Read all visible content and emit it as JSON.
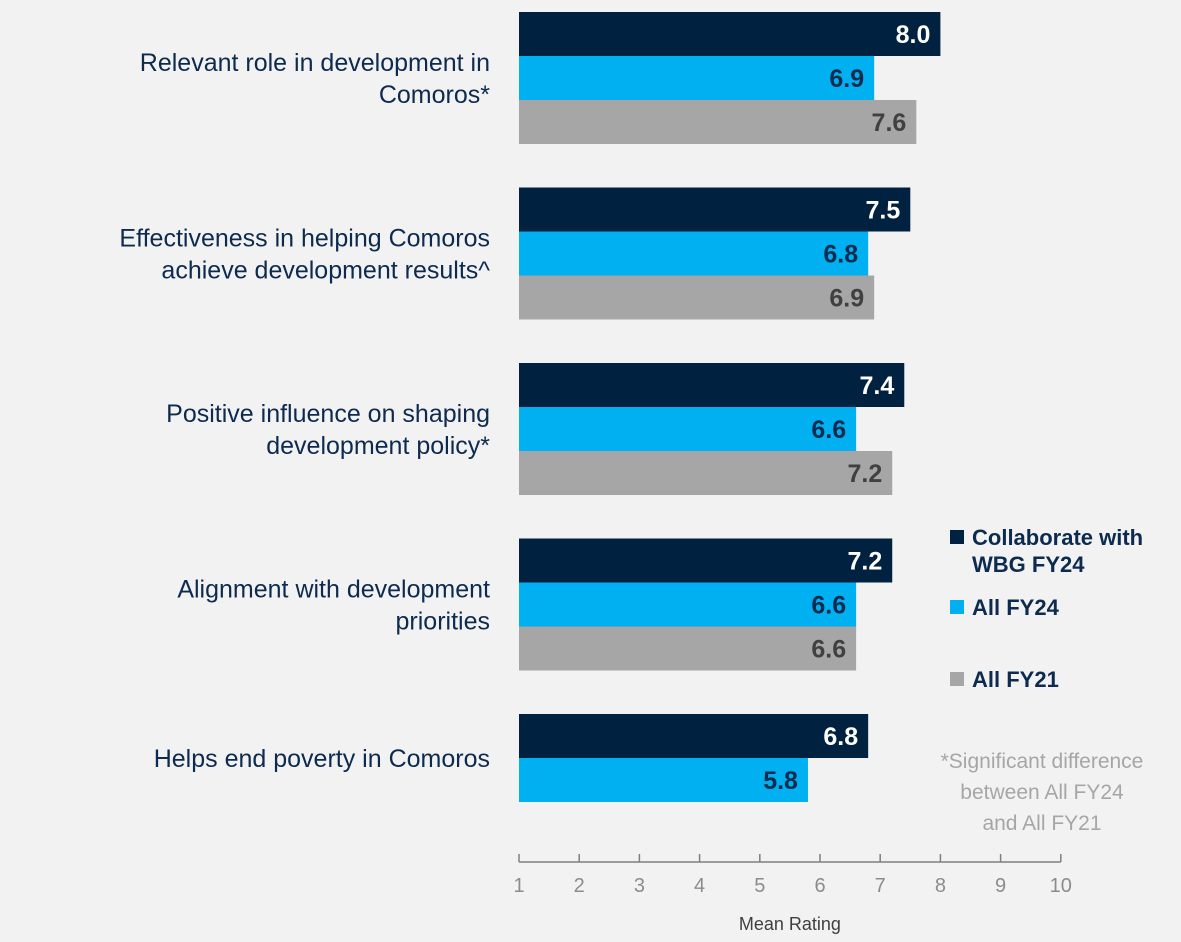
{
  "chart_data": {
    "type": "bar",
    "orientation": "horizontal",
    "categories": [
      [
        "Relevant role in development in",
        "Comoros*"
      ],
      [
        "Effectiveness in helping Comoros",
        "achieve development results^"
      ],
      [
        "Positive influence on shaping",
        "development policy*"
      ],
      [
        "Alignment with development",
        "priorities"
      ],
      [
        "Helps end poverty in Comoros"
      ]
    ],
    "series": [
      {
        "name": [
          "Collaborate with",
          "WBG FY24"
        ],
        "color": "#00213f",
        "label_color": "#ffffff",
        "values": [
          8.0,
          7.5,
          7.4,
          7.2,
          6.8
        ]
      },
      {
        "name": [
          "All FY24"
        ],
        "color": "#00b0f0",
        "label_color": "#0d2a4f",
        "values": [
          6.9,
          6.8,
          6.6,
          6.6,
          5.8
        ]
      },
      {
        "name": [
          "All FY21"
        ],
        "color": "#a6a6a6",
        "label_color": "#404040",
        "values": [
          7.6,
          6.9,
          7.2,
          6.6,
          null
        ]
      }
    ],
    "xlabel": "Mean Rating",
    "xlim": [
      1,
      10
    ],
    "xticks": [
      1,
      2,
      3,
      4,
      5,
      6,
      7,
      8,
      9,
      10
    ],
    "grid": false,
    "legend_position": "right",
    "note": [
      "*Significant difference",
      "between All FY24",
      "and All FY21"
    ]
  }
}
